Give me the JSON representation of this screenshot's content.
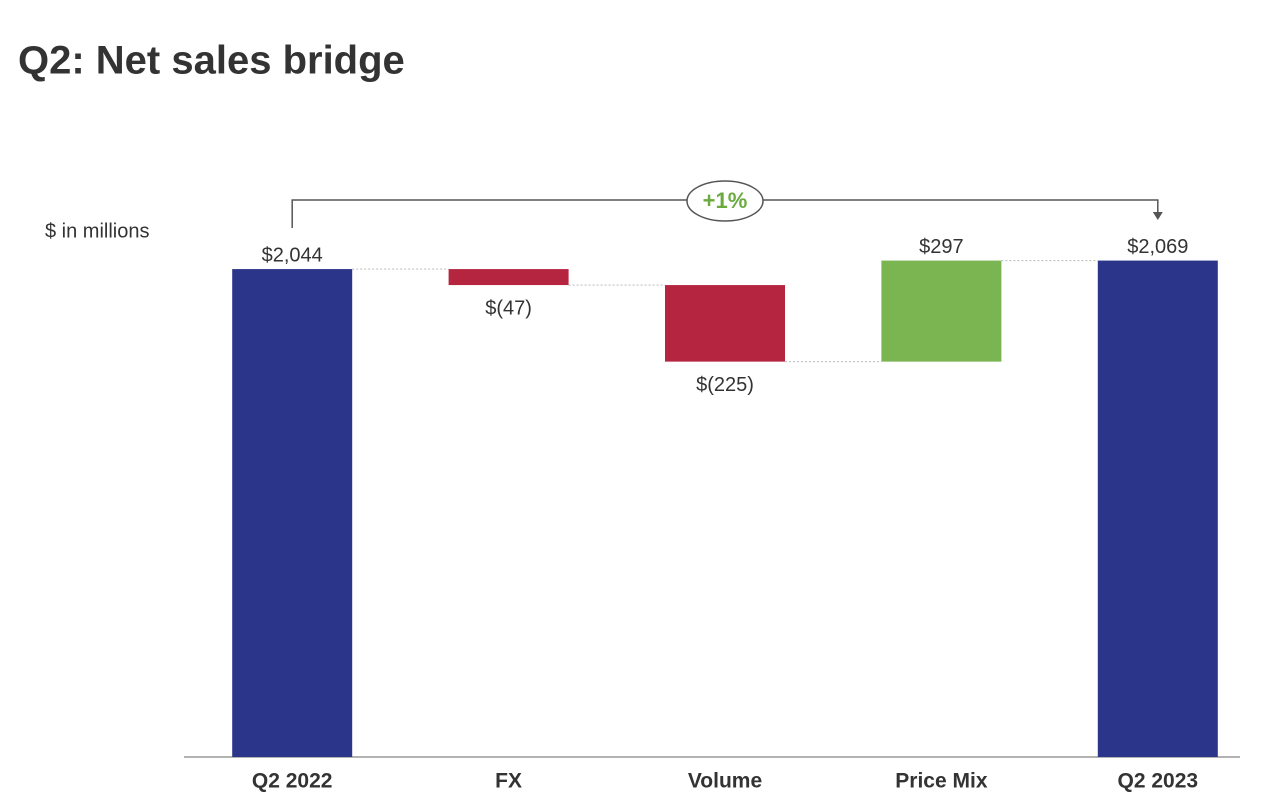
{
  "chart_data": {
    "type": "waterfall",
    "title": "Q2: Net sales bridge",
    "subtitle": "$ in millions",
    "annotation": "+1%",
    "categories": [
      "Q2 2022",
      "FX",
      "Volume",
      "Price Mix",
      "Q2 2023"
    ],
    "values": [
      2044,
      -47,
      -225,
      297,
      2069
    ],
    "value_labels": [
      "$2,044",
      "$(47)",
      "$(225)",
      "$297",
      "$2,069"
    ],
    "colors": [
      "#2b3589",
      "#b5253f",
      "#b5253f",
      "#7ab552",
      "#2b3589"
    ],
    "annotation_color": "#6aaa3f",
    "ylim": [
      610,
      2200
    ]
  }
}
